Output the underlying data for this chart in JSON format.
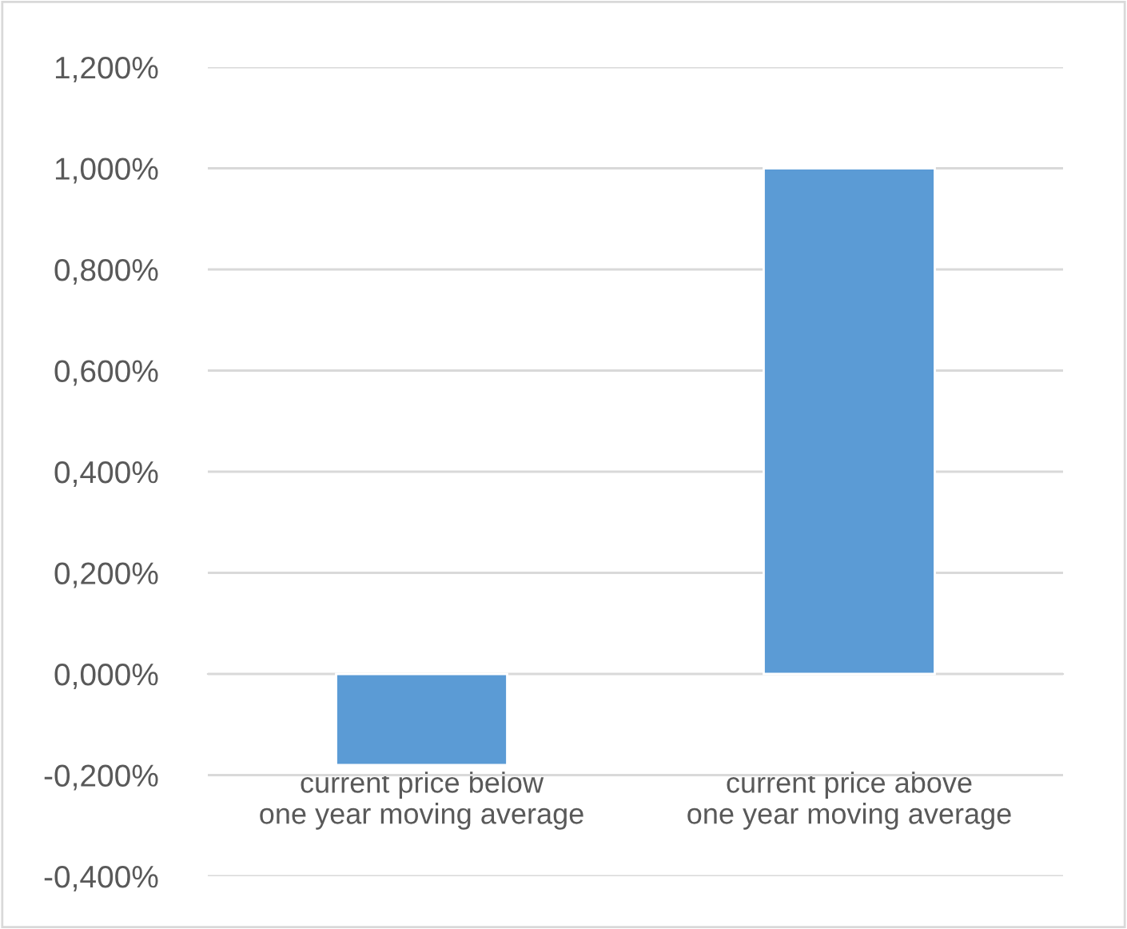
{
  "chart_data": {
    "type": "bar",
    "categories": [
      "current price below one year moving average",
      "current price above one year moving average"
    ],
    "values": [
      -0.18,
      1.0
    ],
    "color": "#5b9bd5",
    "ylim": [
      -0.4,
      1.2
    ],
    "yticks": [
      {
        "value": -0.4,
        "label": "-0,400%"
      },
      {
        "value": -0.2,
        "label": "-0,200%"
      },
      {
        "value": 0,
        "label": "0,000%"
      },
      {
        "value": 0.2,
        "label": "0,200%"
      },
      {
        "value": 0.4,
        "label": "0,400%"
      },
      {
        "value": 0.6,
        "label": "0,600%"
      },
      {
        "value": 0.8,
        "label": "0,800%"
      },
      {
        "value": 1.0,
        "label": "1,000%"
      },
      {
        "value": 1.2,
        "label": "1,200%"
      }
    ],
    "grid": "y",
    "legend": false
  }
}
